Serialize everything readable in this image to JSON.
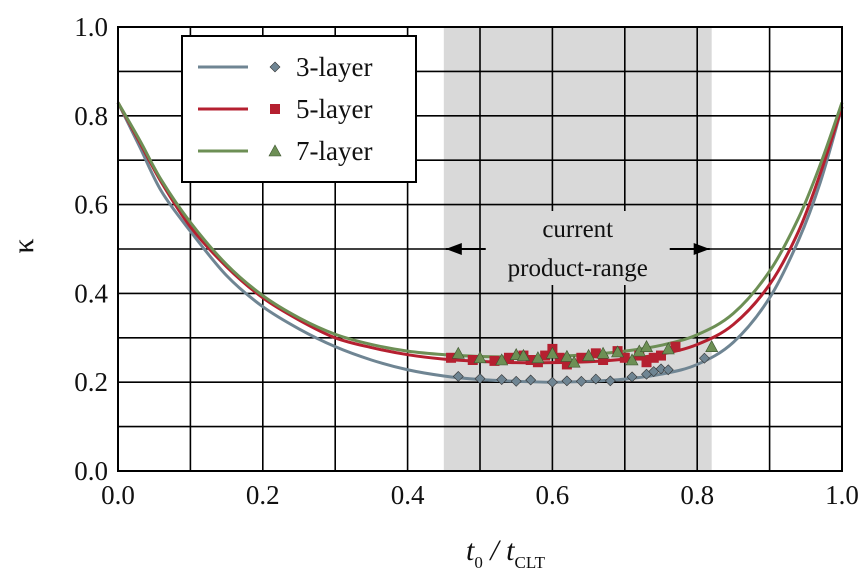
{
  "chart_data": {
    "type": "line",
    "title": "",
    "xlabel_main": "t",
    "xlabel_sub0": "0",
    "xlabel_sep": " / t",
    "xlabel_sub1": "CLT",
    "ylabel": "κ",
    "xlim": [
      0.0,
      1.0
    ],
    "ylim": [
      0.0,
      1.0
    ],
    "xticks": [
      "0.0",
      "0.2",
      "0.4",
      "0.6",
      "0.8",
      "1.0"
    ],
    "yticks": [
      "0.0",
      "0.2",
      "0.4",
      "0.6",
      "0.8",
      "1.0"
    ],
    "grid": true,
    "legend_position": "top-left",
    "shaded_region": {
      "x": [
        0.45,
        0.82
      ],
      "color": "#d9d9d9"
    },
    "annotation": {
      "line1": "current",
      "line2": "product-range",
      "y": 0.5
    },
    "series": [
      {
        "name": "3-layer",
        "color": "#6f8593",
        "marker": "diamond",
        "line": [
          [
            0.0,
            0.83
          ],
          [
            0.03,
            0.73
          ],
          [
            0.06,
            0.63
          ],
          [
            0.1,
            0.54
          ],
          [
            0.15,
            0.44
          ],
          [
            0.2,
            0.37
          ],
          [
            0.25,
            0.32
          ],
          [
            0.3,
            0.28
          ],
          [
            0.35,
            0.25
          ],
          [
            0.4,
            0.228
          ],
          [
            0.45,
            0.214
          ],
          [
            0.5,
            0.206
          ],
          [
            0.55,
            0.202
          ],
          [
            0.6,
            0.2
          ],
          [
            0.65,
            0.202
          ],
          [
            0.7,
            0.207
          ],
          [
            0.75,
            0.218
          ],
          [
            0.8,
            0.24
          ],
          [
            0.85,
            0.29
          ],
          [
            0.9,
            0.39
          ],
          [
            0.94,
            0.52
          ],
          [
            0.97,
            0.65
          ],
          [
            1.0,
            0.82
          ]
        ],
        "points": [
          [
            0.47,
            0.213
          ],
          [
            0.5,
            0.208
          ],
          [
            0.53,
            0.206
          ],
          [
            0.55,
            0.202
          ],
          [
            0.57,
            0.205
          ],
          [
            0.6,
            0.2
          ],
          [
            0.62,
            0.203
          ],
          [
            0.64,
            0.202
          ],
          [
            0.66,
            0.207
          ],
          [
            0.68,
            0.203
          ],
          [
            0.71,
            0.212
          ],
          [
            0.73,
            0.218
          ],
          [
            0.74,
            0.224
          ],
          [
            0.75,
            0.23
          ],
          [
            0.76,
            0.228
          ],
          [
            0.81,
            0.254
          ]
        ]
      },
      {
        "name": "5-layer",
        "color": "#b52030",
        "marker": "square",
        "line": [
          [
            0.0,
            0.83
          ],
          [
            0.03,
            0.74
          ],
          [
            0.06,
            0.65
          ],
          [
            0.1,
            0.55
          ],
          [
            0.15,
            0.46
          ],
          [
            0.2,
            0.39
          ],
          [
            0.25,
            0.34
          ],
          [
            0.3,
            0.3
          ],
          [
            0.35,
            0.278
          ],
          [
            0.4,
            0.262
          ],
          [
            0.45,
            0.252
          ],
          [
            0.5,
            0.247
          ],
          [
            0.55,
            0.244
          ],
          [
            0.6,
            0.244
          ],
          [
            0.65,
            0.246
          ],
          [
            0.7,
            0.252
          ],
          [
            0.75,
            0.263
          ],
          [
            0.8,
            0.285
          ],
          [
            0.85,
            0.33
          ],
          [
            0.9,
            0.42
          ],
          [
            0.94,
            0.54
          ],
          [
            0.97,
            0.67
          ],
          [
            1.0,
            0.82
          ]
        ],
        "points": [
          [
            0.46,
            0.255
          ],
          [
            0.49,
            0.25
          ],
          [
            0.52,
            0.248
          ],
          [
            0.54,
            0.255
          ],
          [
            0.56,
            0.26
          ],
          [
            0.57,
            0.25
          ],
          [
            0.58,
            0.245
          ],
          [
            0.59,
            0.26
          ],
          [
            0.6,
            0.275
          ],
          [
            0.61,
            0.255
          ],
          [
            0.62,
            0.24
          ],
          [
            0.64,
            0.255
          ],
          [
            0.66,
            0.265
          ],
          [
            0.67,
            0.25
          ],
          [
            0.69,
            0.27
          ],
          [
            0.7,
            0.255
          ],
          [
            0.72,
            0.26
          ],
          [
            0.73,
            0.245
          ],
          [
            0.74,
            0.255
          ],
          [
            0.75,
            0.26
          ],
          [
            0.77,
            0.28
          ]
        ]
      },
      {
        "name": "7-layer",
        "color": "#6d8f55",
        "marker": "triangle",
        "line": [
          [
            0.0,
            0.83
          ],
          [
            0.03,
            0.745
          ],
          [
            0.06,
            0.655
          ],
          [
            0.1,
            0.56
          ],
          [
            0.15,
            0.465
          ],
          [
            0.2,
            0.395
          ],
          [
            0.25,
            0.345
          ],
          [
            0.3,
            0.308
          ],
          [
            0.35,
            0.285
          ],
          [
            0.4,
            0.27
          ],
          [
            0.45,
            0.262
          ],
          [
            0.5,
            0.258
          ],
          [
            0.55,
            0.257
          ],
          [
            0.6,
            0.258
          ],
          [
            0.65,
            0.262
          ],
          [
            0.7,
            0.27
          ],
          [
            0.75,
            0.283
          ],
          [
            0.8,
            0.307
          ],
          [
            0.85,
            0.355
          ],
          [
            0.9,
            0.45
          ],
          [
            0.94,
            0.57
          ],
          [
            0.97,
            0.69
          ],
          [
            1.0,
            0.83
          ]
        ],
        "points": [
          [
            0.47,
            0.265
          ],
          [
            0.5,
            0.255
          ],
          [
            0.53,
            0.25
          ],
          [
            0.55,
            0.262
          ],
          [
            0.56,
            0.26
          ],
          [
            0.58,
            0.255
          ],
          [
            0.6,
            0.265
          ],
          [
            0.62,
            0.258
          ],
          [
            0.63,
            0.245
          ],
          [
            0.65,
            0.26
          ],
          [
            0.67,
            0.265
          ],
          [
            0.69,
            0.268
          ],
          [
            0.71,
            0.25
          ],
          [
            0.72,
            0.27
          ],
          [
            0.73,
            0.28
          ],
          [
            0.76,
            0.275
          ],
          [
            0.82,
            0.28
          ]
        ]
      }
    ]
  }
}
